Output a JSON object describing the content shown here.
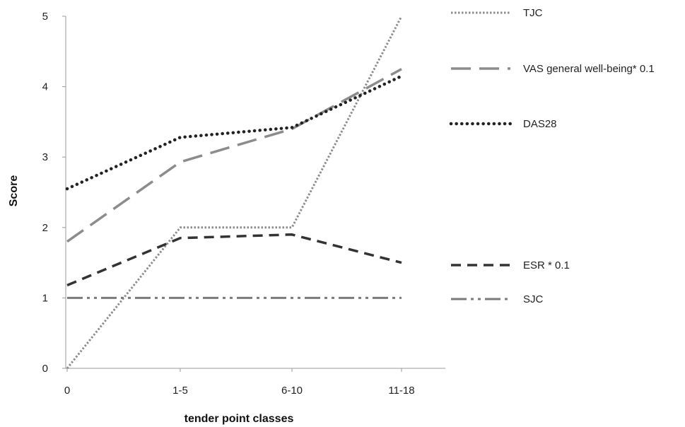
{
  "chart_data": {
    "type": "line",
    "title": "",
    "xlabel": "tender point classes",
    "ylabel": "Score",
    "categories": [
      "0",
      "1-5",
      "6-10",
      "11-18"
    ],
    "y_ticks": [
      "0",
      "1",
      "2",
      "3",
      "4",
      "5"
    ],
    "ylim": [
      0,
      5
    ],
    "grid": false,
    "legend_position": "right",
    "series": [
      {
        "name": "TJC",
        "values": [
          0,
          2,
          2,
          5
        ],
        "color": "#8c8c8c",
        "dash": "dotted-fine"
      },
      {
        "name": "VAS general well-being* 0.1",
        "values": [
          1.8,
          2.93,
          3.4,
          4.25
        ],
        "color": "#8c8c8c",
        "dash": "long-dash"
      },
      {
        "name": "DAS28",
        "values": [
          2.55,
          3.28,
          3.42,
          4.15
        ],
        "color": "#222222",
        "dash": "dotted-heavy"
      },
      {
        "name": "ESR * 0.1",
        "values": [
          1.18,
          1.85,
          1.9,
          1.5
        ],
        "color": "#333333",
        "dash": "dash"
      },
      {
        "name": "SJC",
        "values": [
          1,
          1,
          1,
          1
        ],
        "color": "#7a7a7a",
        "dash": "dash-dot-dot"
      }
    ]
  }
}
